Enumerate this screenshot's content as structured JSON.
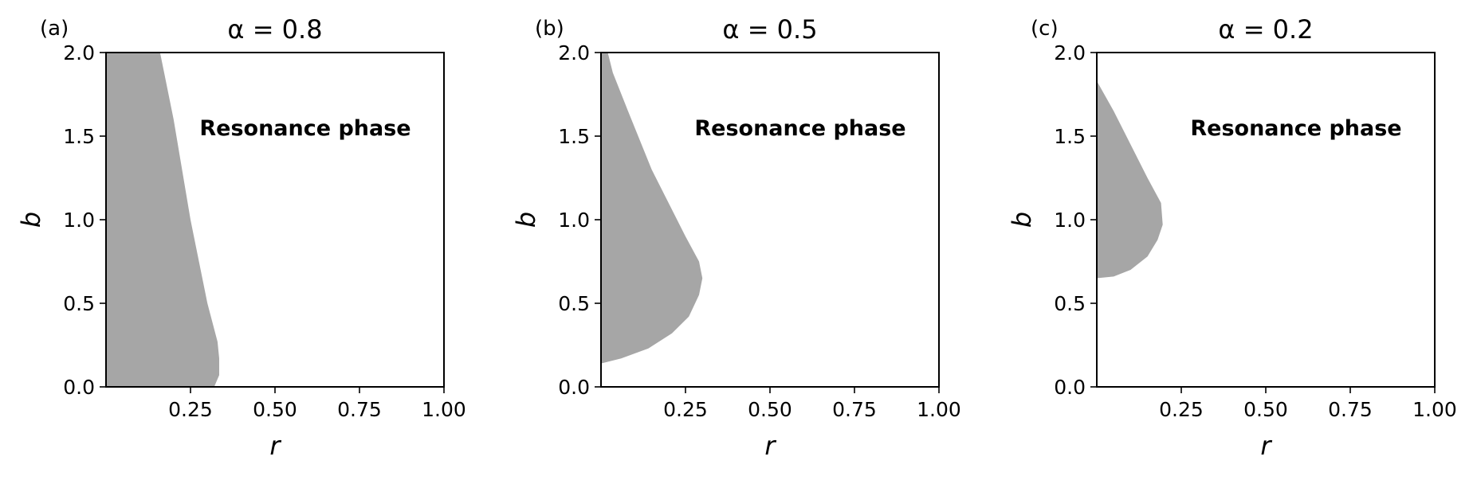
{
  "chart_data": [
    {
      "type": "area",
      "panel_label": "(a)",
      "title": "α = 0.8",
      "xlabel": "r",
      "ylabel": "b",
      "xlim": [
        0,
        1
      ],
      "ylim": [
        0,
        2
      ],
      "xticks": [
        0.25,
        0.5,
        0.75,
        1.0
      ],
      "xtick_labels": [
        "0.25",
        "0.50",
        "0.75",
        "1.00"
      ],
      "yticks": [
        0,
        0.5,
        1.0,
        1.5,
        2.0
      ],
      "ytick_labels": [
        "0.0",
        "0.5",
        "1.0",
        "1.5",
        "2.0"
      ],
      "fill_color": "#a6a6a6",
      "annotation": "Resonance phase",
      "region_boundary": [
        {
          "r": 0.0,
          "b": 0.0
        },
        {
          "r": 0.32,
          "b": 0.0
        },
        {
          "r": 0.335,
          "b": 0.07
        },
        {
          "r": 0.335,
          "b": 0.17
        },
        {
          "r": 0.33,
          "b": 0.27
        },
        {
          "r": 0.3,
          "b": 0.5
        },
        {
          "r": 0.275,
          "b": 0.75
        },
        {
          "r": 0.25,
          "b": 1.0
        },
        {
          "r": 0.225,
          "b": 1.3
        },
        {
          "r": 0.2,
          "b": 1.6
        },
        {
          "r": 0.175,
          "b": 1.85
        },
        {
          "r": 0.16,
          "b": 2.0
        },
        {
          "r": 0.0,
          "b": 2.0
        }
      ]
    },
    {
      "type": "area",
      "panel_label": "(b)",
      "title": "α = 0.5",
      "xlabel": "r",
      "ylabel": "b",
      "xlim": [
        0,
        1
      ],
      "ylim": [
        0,
        2
      ],
      "xticks": [
        0.25,
        0.5,
        0.75,
        1.0
      ],
      "xtick_labels": [
        "0.25",
        "0.50",
        "0.75",
        "1.00"
      ],
      "yticks": [
        0,
        0.5,
        1.0,
        1.5,
        2.0
      ],
      "ytick_labels": [
        "0.0",
        "0.5",
        "1.0",
        "1.5",
        "2.0"
      ],
      "fill_color": "#a6a6a6",
      "annotation": "Resonance phase",
      "region_boundary": [
        {
          "r": 0.0,
          "b": 0.14
        },
        {
          "r": 0.06,
          "b": 0.17
        },
        {
          "r": 0.14,
          "b": 0.23
        },
        {
          "r": 0.21,
          "b": 0.32
        },
        {
          "r": 0.26,
          "b": 0.42
        },
        {
          "r": 0.29,
          "b": 0.55
        },
        {
          "r": 0.3,
          "b": 0.65
        },
        {
          "r": 0.29,
          "b": 0.75
        },
        {
          "r": 0.25,
          "b": 0.9
        },
        {
          "r": 0.2,
          "b": 1.1
        },
        {
          "r": 0.15,
          "b": 1.3
        },
        {
          "r": 0.08,
          "b": 1.65
        },
        {
          "r": 0.035,
          "b": 1.88
        },
        {
          "r": 0.02,
          "b": 2.0
        },
        {
          "r": 0.0,
          "b": 2.0
        }
      ]
    },
    {
      "type": "area",
      "panel_label": "(c)",
      "title": "α = 0.2",
      "xlabel": "r",
      "ylabel": "b",
      "xlim": [
        0,
        1
      ],
      "ylim": [
        0,
        2
      ],
      "xticks": [
        0.25,
        0.5,
        0.75,
        1.0
      ],
      "xtick_labels": [
        "0.25",
        "0.50",
        "0.75",
        "1.00"
      ],
      "yticks": [
        0,
        0.5,
        1.0,
        1.5,
        2.0
      ],
      "ytick_labels": [
        "0.0",
        "0.5",
        "1.0",
        "1.5",
        "2.0"
      ],
      "fill_color": "#a6a6a6",
      "annotation": "Resonance phase",
      "region_boundary": [
        {
          "r": 0.0,
          "b": 0.65
        },
        {
          "r": 0.05,
          "b": 0.66
        },
        {
          "r": 0.1,
          "b": 0.7
        },
        {
          "r": 0.15,
          "b": 0.78
        },
        {
          "r": 0.18,
          "b": 0.88
        },
        {
          "r": 0.195,
          "b": 0.97
        },
        {
          "r": 0.19,
          "b": 1.1
        },
        {
          "r": 0.15,
          "b": 1.25
        },
        {
          "r": 0.1,
          "b": 1.45
        },
        {
          "r": 0.05,
          "b": 1.65
        },
        {
          "r": 0.0,
          "b": 1.83
        }
      ]
    }
  ]
}
